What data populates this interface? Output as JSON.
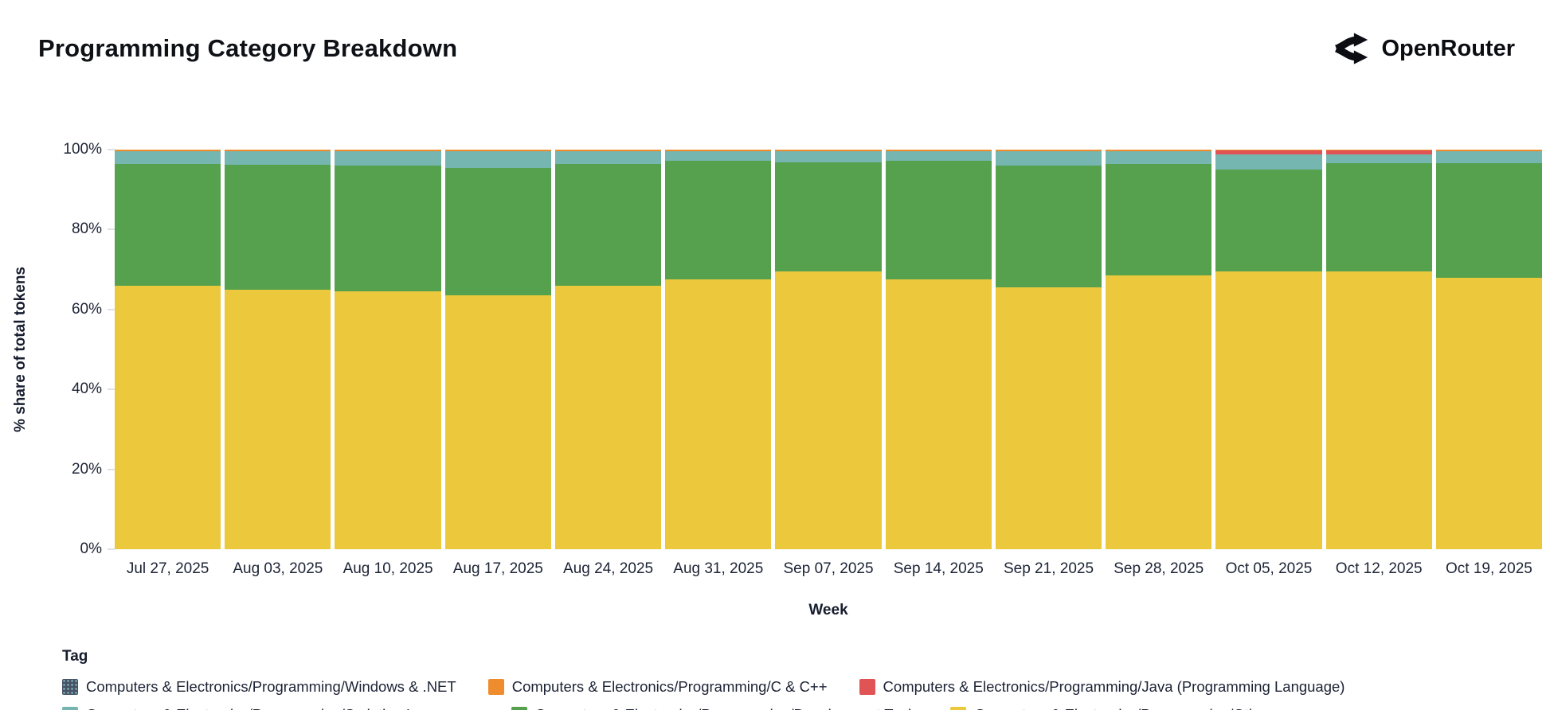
{
  "header": {
    "title": "Programming Category Breakdown",
    "brand": "OpenRouter"
  },
  "chart_data": {
    "type": "bar",
    "stacked": true,
    "normalized_percent": true,
    "title": "Programming Category Breakdown",
    "xlabel": "Week",
    "ylabel": "% share of total tokens",
    "ylim": [
      0,
      100
    ],
    "yticks": [
      "0%",
      "20%",
      "40%",
      "60%",
      "80%",
      "100%"
    ],
    "grid": false,
    "legend_title": "Tag",
    "legend_position": "bottom",
    "categories": [
      "Jul 27, 2025",
      "Aug 03, 2025",
      "Aug 10, 2025",
      "Aug 17, 2025",
      "Aug 24, 2025",
      "Aug 31, 2025",
      "Sep 07, 2025",
      "Sep 14, 2025",
      "Sep 21, 2025",
      "Sep 28, 2025",
      "Oct 05, 2025",
      "Oct 12, 2025",
      "Oct 19, 2025"
    ],
    "series": [
      {
        "name": "Computers & Electronics/Programming/Other",
        "color": "#ecc83d",
        "values": [
          66,
          65,
          64.5,
          63.5,
          66,
          67.5,
          69.5,
          67.5,
          65.5,
          68.5,
          69.5,
          69.5,
          68
        ]
      },
      {
        "name": "Computers & Electronics/Programming/Development Tools",
        "color": "#55a14e",
        "values": [
          30.4,
          31.2,
          31.6,
          32.0,
          30.4,
          29.8,
          27.3,
          29.7,
          30.5,
          27.9,
          25.5,
          27.2,
          28.7
        ]
      },
      {
        "name": "Computers & Electronics/Programming/Scripting Languages",
        "color": "#75b6b1",
        "values": [
          3.2,
          3.4,
          3.5,
          4.1,
          3.2,
          2.3,
          2.8,
          2.4,
          3.6,
          3.2,
          3.9,
          2.2,
          2.9
        ]
      },
      {
        "name": "Computers & Electronics/Programming/Java (Programming Language)",
        "color": "#e15455",
        "values": [
          0.05,
          0.05,
          0.05,
          0.05,
          0.05,
          0.05,
          0.05,
          0.05,
          0.05,
          0.05,
          0.9,
          0.9,
          0.05
        ]
      },
      {
        "name": "Computers & Electronics/Programming/C & C++",
        "color": "#ef8c2d",
        "values": [
          0.3,
          0.3,
          0.3,
          0.3,
          0.3,
          0.3,
          0.3,
          0.3,
          0.3,
          0.3,
          0.15,
          0.15,
          0.3
        ]
      },
      {
        "name": "Computers & Electronics/Programming/Windows & .NET",
        "color": "#475469",
        "pattern": "dots",
        "values": [
          0.05,
          0.05,
          0.05,
          0.05,
          0.05,
          0.05,
          0.05,
          0.05,
          0.05,
          0.05,
          0.05,
          0.05,
          0.05
        ]
      }
    ],
    "legend_order": [
      5,
      4,
      3,
      2,
      1,
      0
    ]
  }
}
